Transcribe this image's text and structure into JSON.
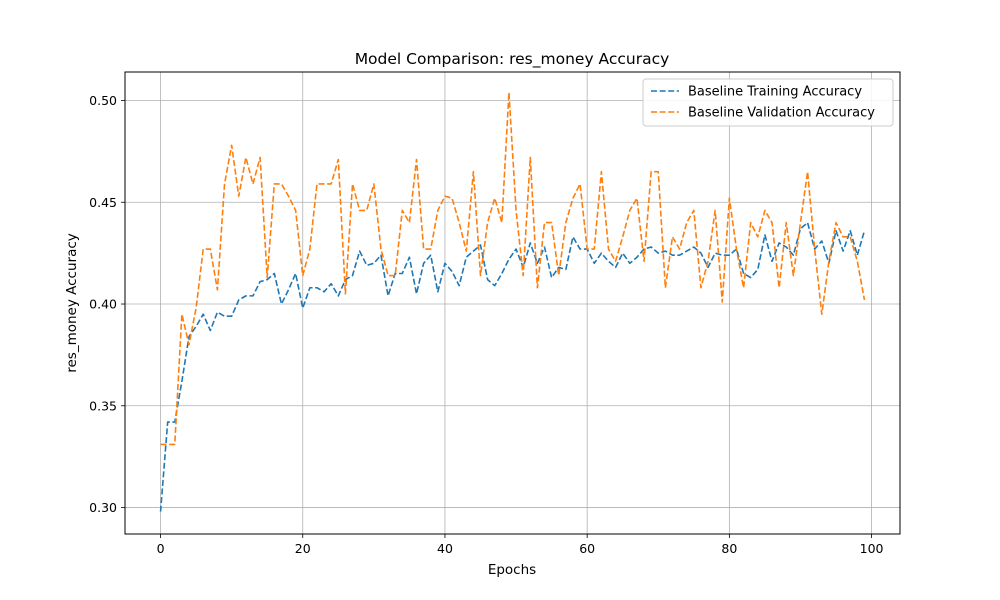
{
  "chart_data": {
    "type": "line",
    "title": "Model Comparison: res_money Accuracy",
    "xlabel": "Epochs",
    "ylabel": "res_money Accuracy",
    "xlim": [
      -5,
      104
    ],
    "ylim": [
      0.287,
      0.514
    ],
    "x_ticks": [
      0,
      20,
      40,
      60,
      80,
      100
    ],
    "y_ticks": [
      0.3,
      0.35,
      0.4,
      0.45,
      0.5
    ],
    "y_tick_labels": [
      "0.30",
      "0.35",
      "0.40",
      "0.45",
      "0.50"
    ],
    "grid": true,
    "legend_position": "top-right",
    "series": [
      {
        "name": "Baseline Training Accuracy",
        "color": "#1f77b4",
        "dash": "dashed",
        "values": [
          0.298,
          0.342,
          0.342,
          0.362,
          0.384,
          0.389,
          0.395,
          0.387,
          0.396,
          0.394,
          0.394,
          0.402,
          0.404,
          0.404,
          0.411,
          0.412,
          0.415,
          0.4,
          0.407,
          0.415,
          0.398,
          0.408,
          0.408,
          0.406,
          0.41,
          0.404,
          0.412,
          0.414,
          0.426,
          0.419,
          0.42,
          0.424,
          0.404,
          0.415,
          0.415,
          0.423,
          0.405,
          0.42,
          0.424,
          0.406,
          0.42,
          0.416,
          0.409,
          0.423,
          0.426,
          0.429,
          0.412,
          0.409,
          0.415,
          0.422,
          0.427,
          0.418,
          0.43,
          0.42,
          0.428,
          0.413,
          0.418,
          0.417,
          0.433,
          0.427,
          0.427,
          0.42,
          0.425,
          0.421,
          0.418,
          0.425,
          0.42,
          0.423,
          0.427,
          0.428,
          0.425,
          0.426,
          0.424,
          0.424,
          0.426,
          0.428,
          0.425,
          0.418,
          0.425,
          0.424,
          0.424,
          0.427,
          0.415,
          0.413,
          0.417,
          0.434,
          0.421,
          0.43,
          0.428,
          0.424,
          0.437,
          0.44,
          0.427,
          0.431,
          0.42,
          0.436,
          0.426,
          0.436,
          0.424,
          0.436
        ]
      },
      {
        "name": "Baseline Validation Accuracy",
        "color": "#ff7f0e",
        "dash": "dashed",
        "values": [
          0.331,
          0.331,
          0.331,
          0.395,
          0.38,
          0.398,
          0.427,
          0.427,
          0.407,
          0.459,
          0.478,
          0.453,
          0.472,
          0.459,
          0.472,
          0.413,
          0.459,
          0.459,
          0.453,
          0.446,
          0.414,
          0.427,
          0.459,
          0.459,
          0.459,
          0.471,
          0.405,
          0.459,
          0.446,
          0.446,
          0.459,
          0.427,
          0.414,
          0.414,
          0.446,
          0.44,
          0.471,
          0.427,
          0.427,
          0.446,
          0.453,
          0.452,
          0.44,
          0.426,
          0.465,
          0.414,
          0.44,
          0.452,
          0.44,
          0.504,
          0.446,
          0.414,
          0.472,
          0.408,
          0.44,
          0.44,
          0.414,
          0.44,
          0.452,
          0.459,
          0.427,
          0.427,
          0.465,
          0.427,
          0.421,
          0.433,
          0.446,
          0.452,
          0.421,
          0.465,
          0.465,
          0.408,
          0.433,
          0.427,
          0.44,
          0.446,
          0.408,
          0.421,
          0.446,
          0.401,
          0.452,
          0.427,
          0.408,
          0.44,
          0.433,
          0.446,
          0.44,
          0.408,
          0.44,
          0.414,
          0.44,
          0.465,
          0.427,
          0.395,
          0.421,
          0.44,
          0.433,
          0.433,
          0.421,
          0.402
        ]
      }
    ]
  }
}
